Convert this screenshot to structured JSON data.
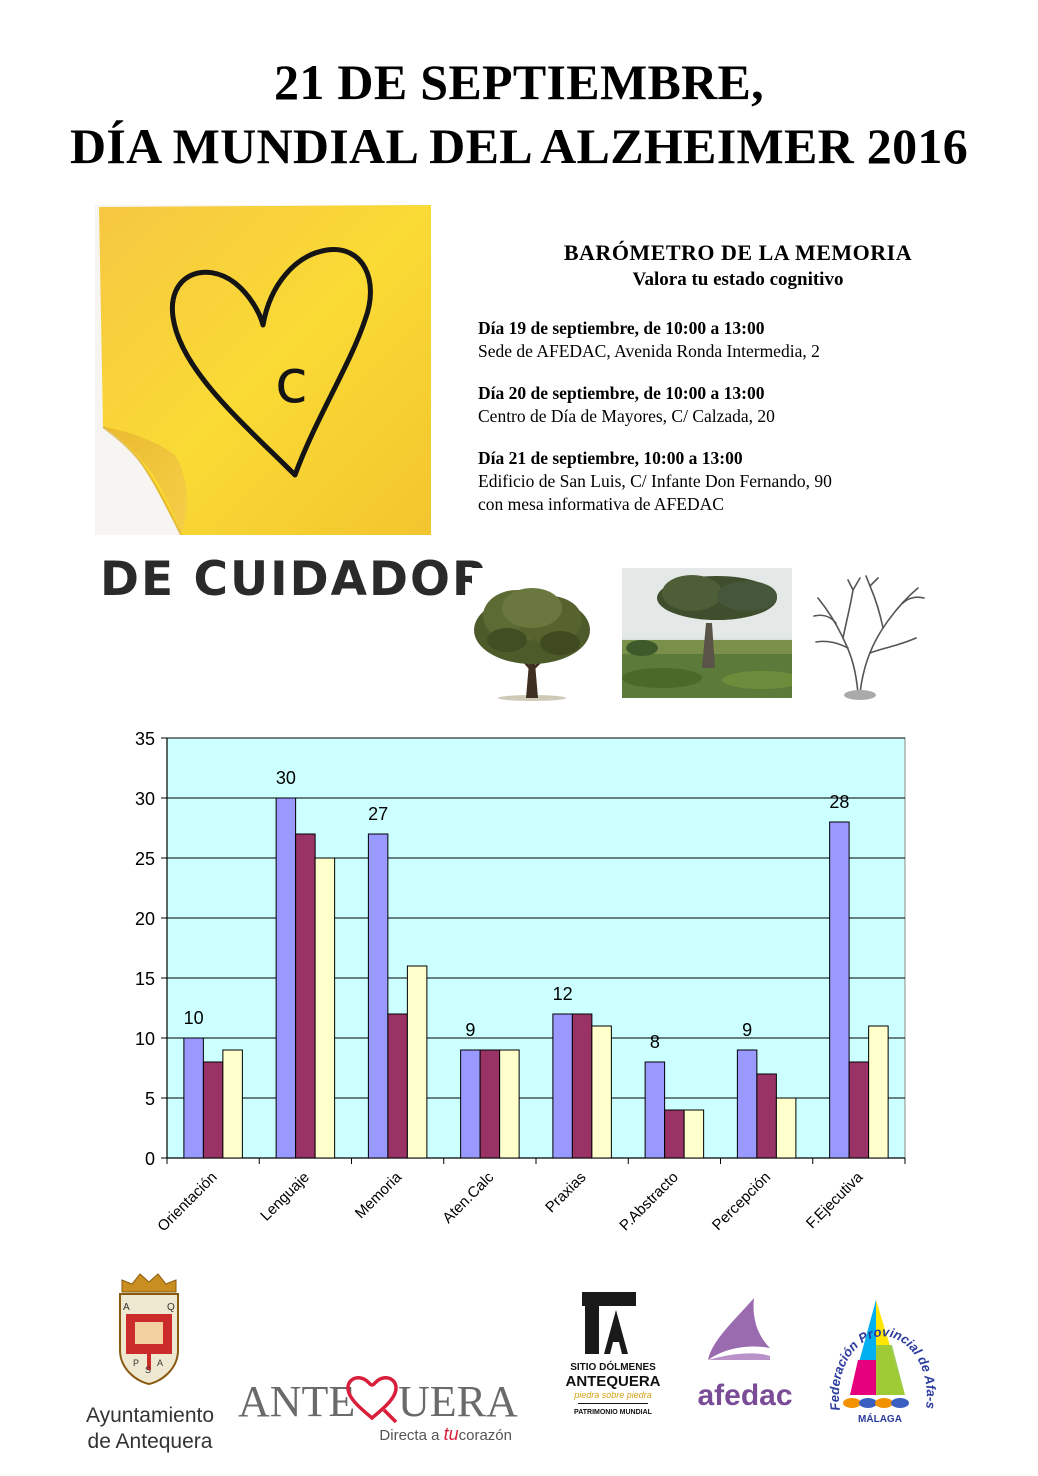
{
  "header": {
    "line1": "21 DE SEPTIEMBRE,",
    "line2": "DÍA MUNDIAL DEL ALZHEIMER 2016"
  },
  "campaign": {
    "note_letter": "c",
    "caption": "DE CUIDADOR",
    "note_color": "#f7d131"
  },
  "barometer": {
    "title": "BARÓMETRO DE LA MEMORIA",
    "subtitle": "Valora tu estado cognitivo",
    "sessions": [
      {
        "when": "Día 19 de septiembre, de 10:00 a 13:00",
        "where": "Sede de AFEDAC, Avenida Ronda Intermedia, 2",
        "extra": ""
      },
      {
        "when": "Día 20 de septiembre, de 10:00 a 13:00",
        "where": "Centro de Día de Mayores, C/ Calzada, 20",
        "extra": ""
      },
      {
        "when": "Día 21 de septiembre, 10:00 a 13:00",
        "where": "Edificio de San Luis, C/ Infante Don Fernando, 90",
        "extra": "con mesa informativa de AFEDAC"
      }
    ]
  },
  "chart_data": {
    "type": "bar",
    "title": "",
    "xlabel": "",
    "ylabel": "",
    "ylim": [
      0,
      35
    ],
    "yticks": [
      0,
      5,
      10,
      15,
      20,
      25,
      30,
      35
    ],
    "grid": true,
    "legend": "none",
    "plot_background": "#ccffff",
    "categories": [
      "Orientación",
      "Lenguaje",
      "Memoria",
      "Aten.Calc",
      "Praxias",
      "P.Abstracto",
      "Percepción",
      "F.Ejecutiva"
    ],
    "series": [
      {
        "values": [
          10,
          30,
          27,
          9,
          12,
          8,
          9,
          28
        ],
        "color": "#9999ff",
        "labels": [
          "10",
          "30",
          "27",
          "9",
          "12",
          "8",
          "9",
          "28"
        ]
      },
      {
        "values": [
          8,
          27,
          12,
          9,
          12,
          4,
          7,
          8
        ],
        "color": "#993366",
        "labels": []
      },
      {
        "values": [
          9,
          25,
          16,
          9,
          11,
          4,
          5,
          11
        ],
        "color": "#ffffcc",
        "labels": []
      }
    ]
  },
  "logos": {
    "ayuntamiento_line1": "Ayuntamiento",
    "ayuntamiento_line2": "de Antequera",
    "shield_letters": [
      "A",
      "Q",
      "P",
      "S",
      "A"
    ],
    "antequera_word_1": "ANTE",
    "antequera_word_2": "UERA",
    "antequera_tag_1": "Directa a ",
    "antequera_tag_tu": "tu",
    "antequera_tag_2": "corazón",
    "dolmenes_1": "SITIO DÓLMENES",
    "dolmenes_2": "ANTEQUERA",
    "dolmenes_3": "piedra sobre piedra",
    "dolmenes_4": "PATRIMONIO MUNDIAL",
    "afedac": "afedac",
    "federacion_arc": "Federación Provincial de Afa-s",
    "federacion_city": "MÁLAGA"
  }
}
